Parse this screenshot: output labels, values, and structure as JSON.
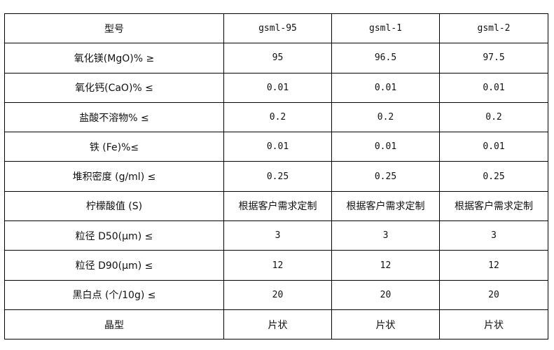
{
  "header": [
    "型号",
    "gsml-95",
    "gsml-1",
    "gsml-2"
  ],
  "rows": [
    [
      "氧化镁(MgO)% ≥",
      "95",
      "96.5",
      "97.5"
    ],
    [
      "氧化钙(CaO)% ≤",
      "0.01",
      "0.01",
      "0.01"
    ],
    [
      "盐酸不溶物% ≤",
      "0.2",
      "0.2",
      "0.2"
    ],
    [
      "铁 (Fe)%≤",
      "0.01",
      "0.01",
      "0.01"
    ],
    [
      "堆积密度 (g/ml) ≤",
      "0.25",
      "0.25",
      "0.25"
    ],
    [
      "柠檬酸值 (S)",
      "根据客户需求定制",
      "根据客户需求定制",
      "根据客户需求定制"
    ],
    [
      "粒径 D50(μm) ≤",
      "3",
      "3",
      "3"
    ],
    [
      "粒径 D90(μm) ≤",
      "12",
      "12",
      "12"
    ],
    [
      "黑白点 (个/10g) ≤",
      "20",
      "20",
      "20"
    ],
    [
      "晶型",
      "片状",
      "片状",
      "片状"
    ]
  ]
}
